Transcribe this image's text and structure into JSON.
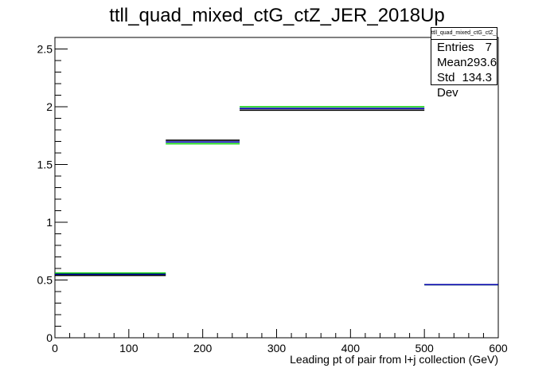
{
  "title": "ttll_quad_mixed_ctG_ctZ_JER_2018Up",
  "stats": {
    "name": "ttll_quad_mixed_ctG_ctZ_JER_2018Up",
    "rows": [
      {
        "label": "Entries",
        "value": "7"
      },
      {
        "label": "Mean",
        "value": "293.6"
      },
      {
        "label": "Std Dev",
        "value": "134.3"
      }
    ]
  },
  "chart_data": {
    "type": "line",
    "title": "ttll_quad_mixed_ctG_ctZ_JER_2018Up",
    "xlabel": "Leading pt of pair from l+j collection (GeV)",
    "ylabel": "",
    "xlim": [
      0,
      600
    ],
    "ylim": [
      0,
      2.6
    ],
    "x_ticks": [
      "0",
      "100",
      "200",
      "300",
      "400",
      "500",
      "600"
    ],
    "y_ticks": [
      "0",
      "0.5",
      "1",
      "1.5",
      "2",
      "2.5"
    ],
    "bin_edges": [
      0,
      150,
      250,
      500,
      600
    ],
    "grid": false,
    "series": [
      {
        "color": "#000000",
        "values": [
          0.54,
          1.71,
          1.97,
          0.46
        ]
      },
      {
        "color": "#00cc00",
        "values": [
          0.56,
          1.68,
          2.0,
          0.46
        ]
      },
      {
        "color": "#0000aa",
        "values": [
          0.55,
          1.695,
          1.985,
          0.46
        ]
      }
    ]
  }
}
